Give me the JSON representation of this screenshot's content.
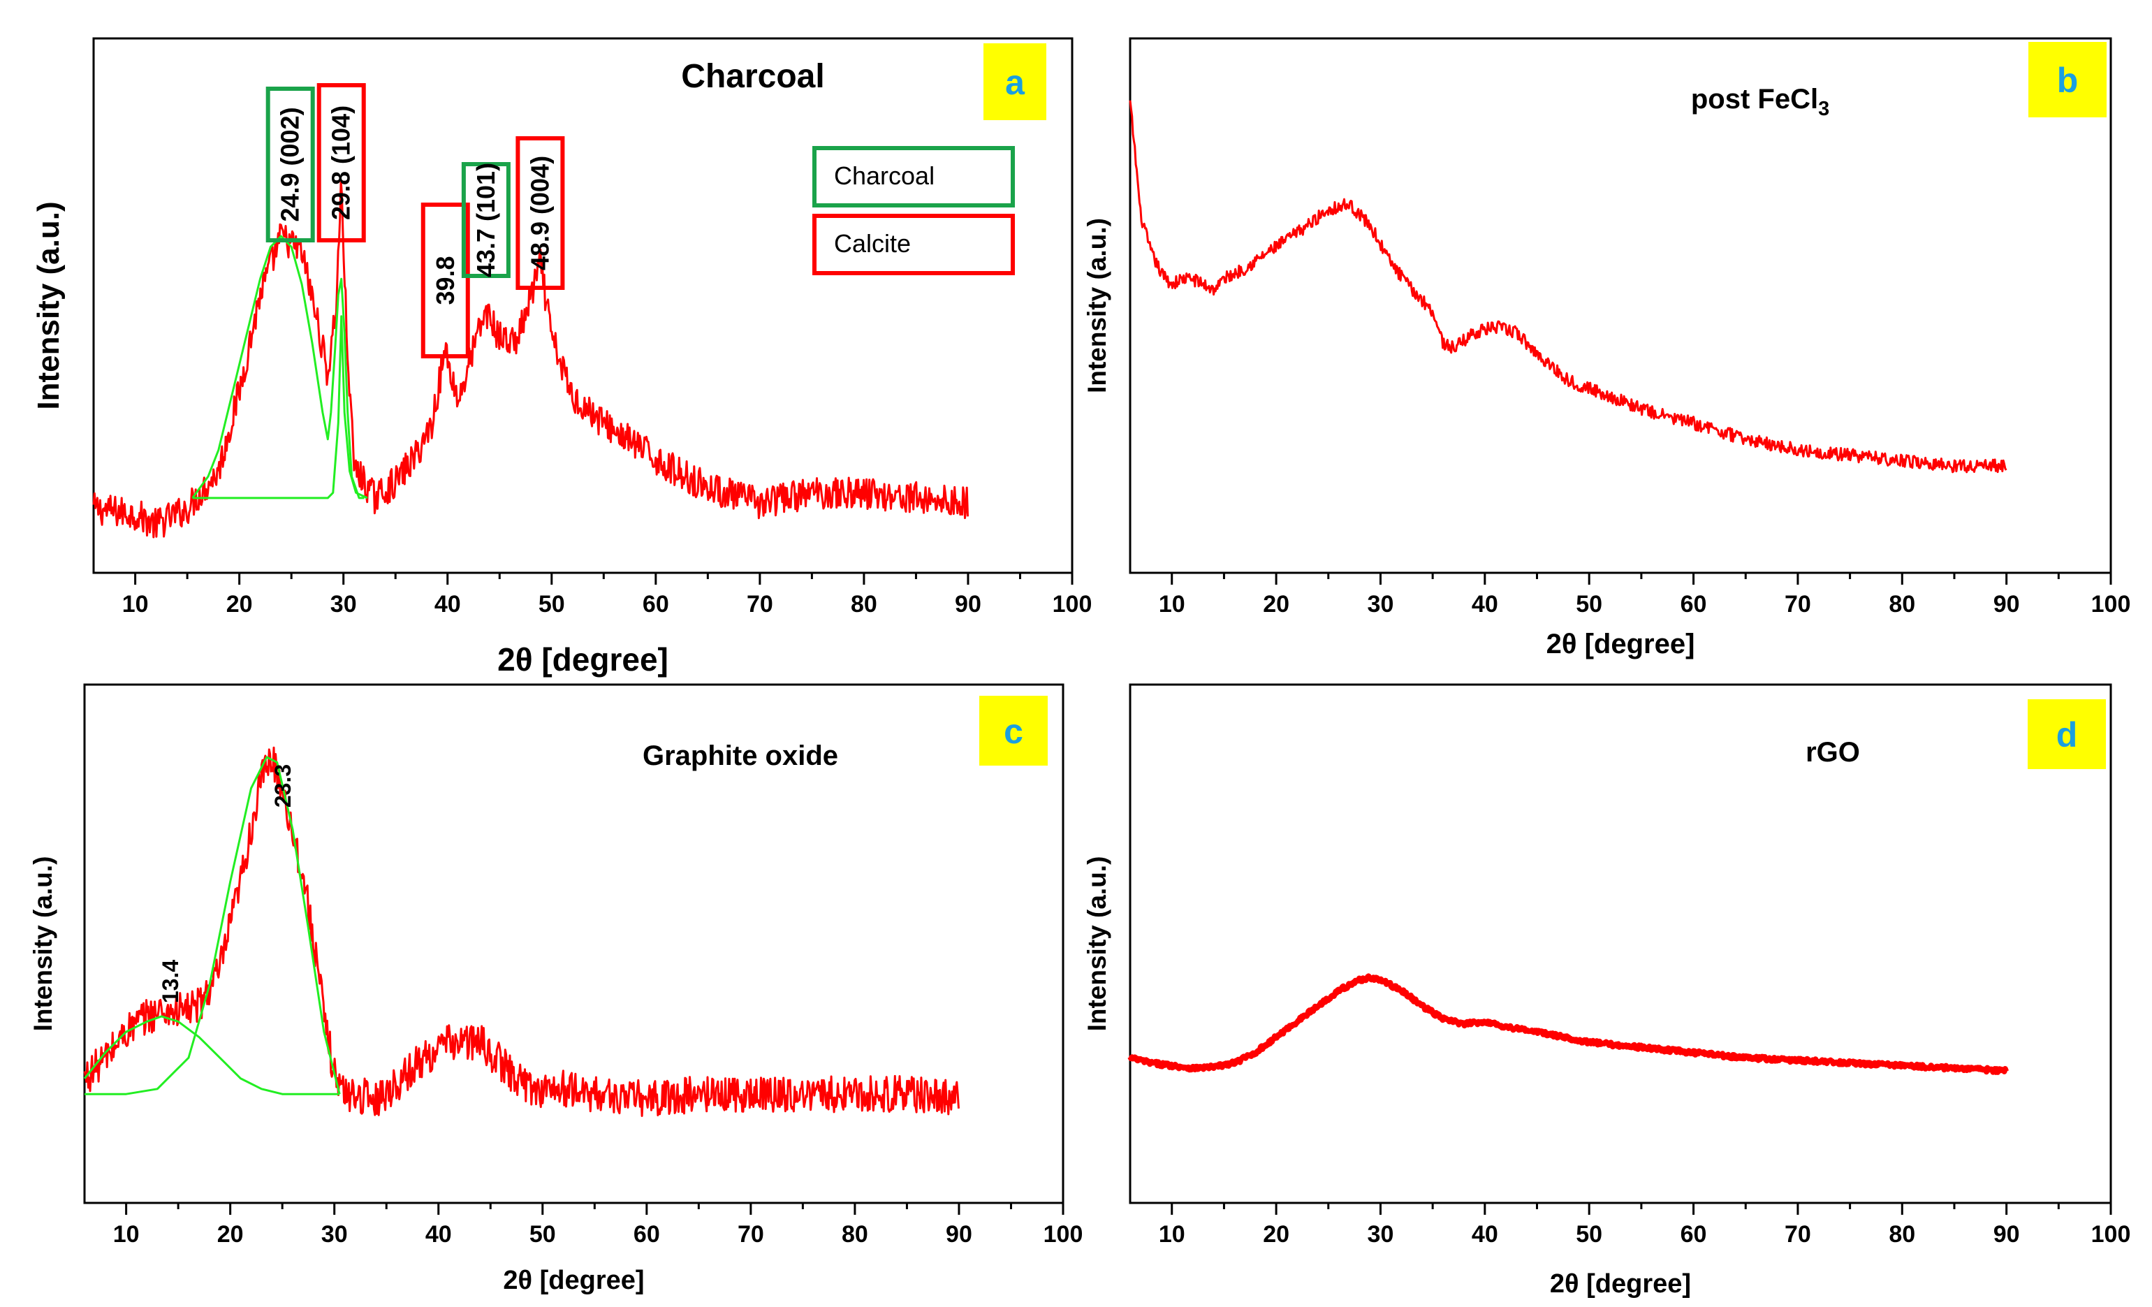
{
  "figure_colors": {
    "data_line": "#ff0000",
    "fit_line": "#22ee22",
    "charcoal_box": "#1aa34a",
    "calcite_box": "#ff0000",
    "badge_bg": "#ffff00",
    "badge_text": "#1a9fe0"
  },
  "chart_data": [
    {
      "type": "line",
      "panel_label": "a",
      "title": "Charcoal",
      "xlabel": "2θ [degree]",
      "ylabel": "Intensity (a.u.)",
      "xlim": [
        6,
        100
      ],
      "ylim": [
        0,
        1
      ],
      "xticks": [
        "10",
        "20",
        "30",
        "40",
        "50",
        "60",
        "70",
        "80",
        "90",
        "100"
      ],
      "grid": false,
      "legend": {
        "placement": "top-right",
        "entries": [
          {
            "label": "Charcoal",
            "color": "#1aa34a"
          },
          {
            "label": "Calcite",
            "color": "#ff0000"
          }
        ]
      },
      "series": [
        {
          "color": "#ff0000",
          "noise": 0.03,
          "x": [
            6,
            10,
            12,
            15,
            18,
            20,
            22,
            24,
            26,
            27.5,
            28.5,
            29.3,
            29.8,
            30.3,
            31,
            33,
            35,
            37,
            38.5,
            39.8,
            41,
            42.5,
            43.7,
            45,
            46.5,
            47.5,
            48.9,
            50,
            52,
            55,
            58,
            61,
            65,
            70,
            75,
            80,
            85,
            90
          ],
          "y": [
            0.12,
            0.11,
            0.09,
            0.12,
            0.19,
            0.34,
            0.52,
            0.63,
            0.6,
            0.47,
            0.37,
            0.5,
            0.73,
            0.45,
            0.2,
            0.14,
            0.17,
            0.22,
            0.28,
            0.42,
            0.32,
            0.42,
            0.49,
            0.44,
            0.43,
            0.48,
            0.58,
            0.44,
            0.33,
            0.28,
            0.24,
            0.2,
            0.16,
            0.13,
            0.15,
            0.15,
            0.14,
            0.13
          ]
        },
        {
          "color": "#22ee22",
          "noise": 0,
          "x": [
            15.5,
            17,
            18,
            19,
            20,
            21,
            22,
            23,
            24,
            25,
            26,
            27,
            28,
            28.5,
            28.8,
            29.2,
            29.5,
            29.8,
            30.1,
            30.4,
            30.8,
            31.5,
            32
          ],
          "y": [
            0.14,
            0.18,
            0.23,
            0.31,
            0.39,
            0.47,
            0.55,
            0.61,
            0.63,
            0.61,
            0.54,
            0.43,
            0.3,
            0.25,
            0.3,
            0.42,
            0.52,
            0.55,
            0.45,
            0.3,
            0.18,
            0.14,
            0.14
          ]
        },
        {
          "color": "#22ee22",
          "noise": 0,
          "x": [
            15.5,
            28.5,
            29,
            29.5,
            29.8,
            30.1,
            30.6,
            31.2,
            32.3
          ],
          "y": [
            0.14,
            0.14,
            0.15,
            0.28,
            0.48,
            0.3,
            0.19,
            0.15,
            0.14
          ]
        }
      ],
      "peak_annotations": [
        {
          "x": 24.9,
          "text": "24.9 (002)",
          "phase": "Charcoal"
        },
        {
          "x": 29.8,
          "text": "29.8 (104)",
          "phase": "Calcite"
        },
        {
          "x": 39.8,
          "text": "39.8",
          "phase": "Calcite"
        },
        {
          "x": 43.7,
          "text": "43.7 (101)",
          "phase": "Charcoal"
        },
        {
          "x": 48.9,
          "text": "48.9 (004)",
          "phase": "Calcite"
        }
      ]
    },
    {
      "type": "line",
      "panel_label": "b",
      "title": "post FeCl",
      "title_subscript": "3",
      "xlabel": "2θ [degree]",
      "ylabel": "Intensity (a.u.)",
      "xlim": [
        6,
        100
      ],
      "ylim": [
        0,
        1
      ],
      "xticks": [
        "10",
        "20",
        "30",
        "40",
        "50",
        "60",
        "70",
        "80",
        "90",
        "100"
      ],
      "grid": false,
      "series": [
        {
          "color": "#ff0000",
          "noise": 0.012,
          "x": [
            6,
            6.5,
            7,
            8,
            9,
            10,
            11,
            12,
            13,
            14,
            15,
            17,
            20,
            23,
            25,
            27,
            29,
            31,
            33,
            35,
            36,
            37,
            39,
            41,
            43,
            45,
            48,
            52,
            56,
            60,
            65,
            70,
            75,
            80,
            85,
            90
          ],
          "y": [
            0.88,
            0.78,
            0.67,
            0.6,
            0.56,
            0.54,
            0.55,
            0.55,
            0.54,
            0.53,
            0.55,
            0.57,
            0.61,
            0.65,
            0.68,
            0.69,
            0.65,
            0.58,
            0.53,
            0.49,
            0.43,
            0.42,
            0.45,
            0.46,
            0.45,
            0.41,
            0.36,
            0.33,
            0.3,
            0.28,
            0.25,
            0.23,
            0.22,
            0.21,
            0.2,
            0.2
          ]
        }
      ]
    },
    {
      "type": "line",
      "panel_label": "c",
      "title": "Graphite oxide",
      "xlabel": "2θ [degree]",
      "ylabel": "Intensity (a.u.)",
      "xlim": [
        6,
        100
      ],
      "ylim": [
        0,
        1
      ],
      "xticks": [
        "10",
        "20",
        "30",
        "40",
        "50",
        "60",
        "70",
        "80",
        "90",
        "100"
      ],
      "grid": false,
      "series": [
        {
          "color": "#ff0000",
          "noise": 0.035,
          "x": [
            6,
            8,
            10,
            12,
            13.4,
            15,
            17,
            19,
            21,
            23,
            24,
            25,
            27,
            28,
            29,
            30,
            31,
            32,
            34,
            36,
            38,
            41,
            44,
            47,
            49,
            52,
            55,
            60,
            65,
            70,
            75,
            80,
            85,
            90
          ],
          "y": [
            0.24,
            0.28,
            0.33,
            0.36,
            0.37,
            0.37,
            0.38,
            0.45,
            0.62,
            0.82,
            0.86,
            0.8,
            0.63,
            0.51,
            0.36,
            0.25,
            0.21,
            0.21,
            0.2,
            0.23,
            0.27,
            0.31,
            0.31,
            0.25,
            0.22,
            0.22,
            0.21,
            0.2,
            0.21,
            0.21,
            0.21,
            0.21,
            0.21,
            0.2
          ]
        },
        {
          "color": "#22ee22",
          "noise": 0,
          "x": [
            6,
            8,
            10,
            12,
            13.4,
            15,
            17,
            19,
            21,
            23,
            25,
            27,
            29,
            30.5
          ],
          "y": [
            0.24,
            0.29,
            0.33,
            0.35,
            0.36,
            0.35,
            0.32,
            0.28,
            0.24,
            0.22,
            0.21,
            0.21,
            0.21,
            0.21
          ]
        },
        {
          "color": "#22ee22",
          "noise": 0,
          "x": [
            6,
            10,
            13,
            16,
            18,
            20,
            22,
            23.5,
            24.5,
            26,
            27.5,
            29,
            30.5
          ],
          "y": [
            0.21,
            0.21,
            0.22,
            0.28,
            0.42,
            0.62,
            0.8,
            0.86,
            0.85,
            0.72,
            0.53,
            0.33,
            0.21
          ]
        }
      ],
      "peak_annotations": [
        {
          "x": 13.4,
          "text": "13.4"
        },
        {
          "x": 23.3,
          "text": "23.3"
        }
      ]
    },
    {
      "type": "line",
      "panel_label": "d",
      "title": "rGO",
      "xlabel": "2θ [degree]",
      "ylabel": "Intensity (a.u.)",
      "xlim": [
        6,
        100
      ],
      "ylim": [
        0,
        1
      ],
      "xticks": [
        "10",
        "20",
        "30",
        "40",
        "50",
        "60",
        "70",
        "80",
        "90",
        "100"
      ],
      "grid": false,
      "series": [
        {
          "color": "#ff0000",
          "noise": 0.004,
          "x": [
            6,
            8,
            10,
            12,
            14,
            16,
            18,
            20,
            22,
            24,
            26,
            28,
            29,
            30,
            32,
            34,
            36,
            38,
            40,
            42,
            45,
            50,
            55,
            60,
            65,
            70,
            75,
            80,
            85,
            90
          ],
          "y": [
            0.28,
            0.27,
            0.265,
            0.26,
            0.262,
            0.27,
            0.29,
            0.32,
            0.35,
            0.38,
            0.41,
            0.43,
            0.435,
            0.43,
            0.41,
            0.38,
            0.355,
            0.345,
            0.35,
            0.34,
            0.33,
            0.31,
            0.3,
            0.29,
            0.28,
            0.275,
            0.27,
            0.265,
            0.26,
            0.255
          ]
        }
      ]
    }
  ]
}
